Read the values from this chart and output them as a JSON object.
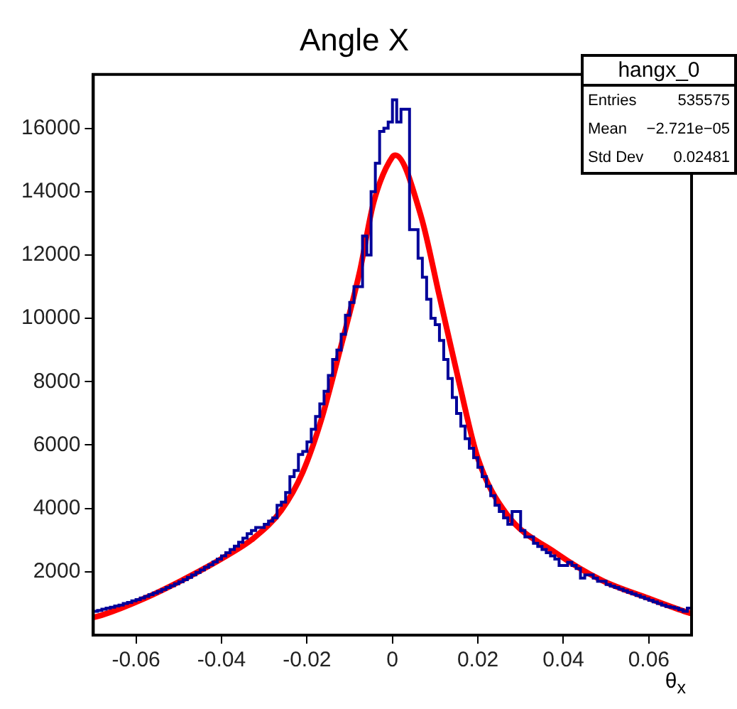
{
  "chart_data": {
    "type": "histogram",
    "title": "Angle X",
    "xlabel": "θ$_{x}$",
    "annotations": [
      "hangx_0",
      "Entries",
      "535575",
      "Mean",
      "−2.721e−05",
      "Std Dev",
      "0.02481"
    ],
    "xlim": [
      -0.07,
      0.07
    ],
    "xticks": [
      -0.06,
      -0.04,
      -0.02,
      0,
      0.02,
      0.04,
      0.06
    ],
    "ylim": [
      0,
      17700
    ],
    "yticks": [
      2000,
      4000,
      6000,
      8000,
      10000,
      12000,
      14000,
      16000
    ],
    "grid": false,
    "legend": false,
    "bins": [
      -0.07,
      -0.069,
      -0.068,
      -0.067,
      -0.066,
      -0.065,
      -0.064,
      -0.063,
      -0.062,
      -0.061,
      -0.06,
      -0.059,
      -0.058,
      -0.057,
      -0.056,
      -0.055,
      -0.054,
      -0.053,
      -0.052,
      -0.051,
      -0.05,
      -0.049,
      -0.048,
      -0.047,
      -0.046,
      -0.045,
      -0.044,
      -0.043,
      -0.042,
      -0.041,
      -0.04,
      -0.039,
      -0.038,
      -0.037,
      -0.036,
      -0.035,
      -0.034,
      -0.033,
      -0.032,
      -0.031,
      -0.03,
      -0.029,
      -0.028,
      -0.027,
      -0.026,
      -0.025,
      -0.024,
      -0.023,
      -0.022,
      -0.021,
      -0.02,
      -0.019,
      -0.018,
      -0.017,
      -0.016,
      -0.015,
      -0.014,
      -0.013,
      -0.012,
      -0.011,
      -0.01,
      -0.009,
      -0.008,
      -0.007,
      -0.006,
      -0.005,
      -0.004,
      -0.003,
      -0.002,
      -0.001,
      0,
      0.001,
      0.002,
      0.003,
      0.004,
      0.005,
      0.006,
      0.007,
      0.008,
      0.009,
      0.01,
      0.011,
      0.012,
      0.013,
      0.014,
      0.015,
      0.016,
      0.017,
      0.018,
      0.019,
      0.02,
      0.021,
      0.022,
      0.023,
      0.024,
      0.025,
      0.026,
      0.027,
      0.028,
      0.029,
      0.03,
      0.031,
      0.032,
      0.033,
      0.034,
      0.035,
      0.036,
      0.037,
      0.038,
      0.039,
      0.04,
      0.041,
      0.042,
      0.043,
      0.044,
      0.045,
      0.046,
      0.047,
      0.048,
      0.049,
      0.05,
      0.051,
      0.052,
      0.053,
      0.054,
      0.055,
      0.056,
      0.057,
      0.058,
      0.059,
      0.06,
      0.061,
      0.062,
      0.063,
      0.064,
      0.065,
      0.066,
      0.067,
      0.068,
      0.069,
      0.07
    ],
    "series": [
      {
        "type": "histogram",
        "color": "#000099",
        "values": [
          750,
          780,
          820,
          850,
          880,
          920,
          950,
          1000,
          1030,
          1080,
          1120,
          1170,
          1220,
          1280,
          1330,
          1380,
          1440,
          1500,
          1560,
          1620,
          1680,
          1750,
          1820,
          1900,
          1980,
          2060,
          2140,
          2220,
          2310,
          2400,
          2500,
          2600,
          2700,
          2810,
          2930,
          3060,
          3200,
          3300,
          3400,
          3400,
          3500,
          3600,
          3700,
          4100,
          4200,
          4500,
          5000,
          5200,
          5700,
          5800,
          6100,
          6500,
          6900,
          7300,
          7700,
          8200,
          8700,
          9000,
          9500,
          10100,
          10500,
          11000,
          11000,
          12600,
          12000,
          14000,
          14900,
          15900,
          16000,
          16200,
          16900,
          16200,
          16600,
          16600,
          12800,
          12800,
          11900,
          11300,
          10600,
          10000,
          9800,
          9300,
          8700,
          8100,
          7500,
          7000,
          6600,
          6200,
          5900,
          5600,
          5300,
          5000,
          4700,
          4400,
          4100,
          3900,
          3700,
          3500,
          3900,
          3900,
          3300,
          3100,
          3100,
          2900,
          2800,
          2700,
          2600,
          2500,
          2400,
          2200,
          2200,
          2300,
          2200,
          2100,
          1800,
          1900,
          1900,
          1800,
          1700,
          1700,
          1600,
          1550,
          1500,
          1450,
          1400,
          1350,
          1300,
          1250,
          1200,
          1150,
          1100,
          1050,
          1000,
          950,
          900,
          880,
          850,
          800,
          750,
          850
        ]
      },
      {
        "type": "line",
        "color": "#ff0000",
        "x": [
          -0.07,
          -0.068,
          -0.058,
          -0.048,
          -0.039,
          -0.0325,
          -0.026,
          -0.021,
          -0.0168,
          -0.0124,
          -0.0077,
          -0.0044,
          0,
          0.0007,
          0.0067,
          0.011,
          0.0157,
          0.02,
          0.0268,
          0.038,
          0.049,
          0.06,
          0.069,
          0.07
        ],
        "values": [
          560,
          630,
          1160,
          1820,
          2490,
          3060,
          3940,
          5140,
          6730,
          8930,
          11450,
          13660,
          15100,
          15150,
          13220,
          10700,
          7920,
          5580,
          3810,
          2620,
          1730,
          1160,
          720,
          680
        ]
      }
    ]
  }
}
